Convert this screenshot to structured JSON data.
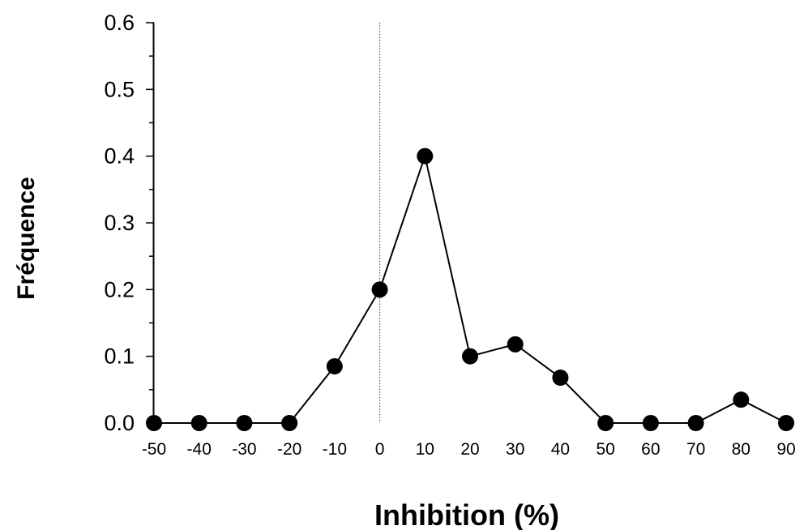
{
  "chart_data": {
    "type": "line",
    "xlabel": "Inhibition (%)",
    "ylabel": "Fréquence",
    "x": [
      -50,
      -40,
      -30,
      -20,
      -10,
      0,
      10,
      20,
      30,
      40,
      50,
      60,
      70,
      80,
      90
    ],
    "series": [
      {
        "values": [
          0,
          0,
          0,
          0,
          0.085,
          0.2,
          0.4,
          0.1,
          0.118,
          0.068,
          0,
          0,
          0,
          0.035,
          0
        ]
      }
    ],
    "xlim": [
      -50,
      90
    ],
    "ylim": [
      0,
      0.6
    ],
    "x_ticks": [
      "-50",
      "-40",
      "-30",
      "-20",
      "-10",
      "0",
      "10",
      "20",
      "30",
      "40",
      "50",
      "60",
      "70",
      "80",
      "90"
    ],
    "y_ticks": [
      "0.0",
      "0.1",
      "0.2",
      "0.3",
      "0.4",
      "0.5",
      "0.6"
    ],
    "reference_line": {
      "x": 0,
      "style": "dotted"
    },
    "grid": false,
    "legend": "none",
    "colors": {
      "line": "#000000",
      "marker": "#000000",
      "reference": "#555555"
    }
  }
}
